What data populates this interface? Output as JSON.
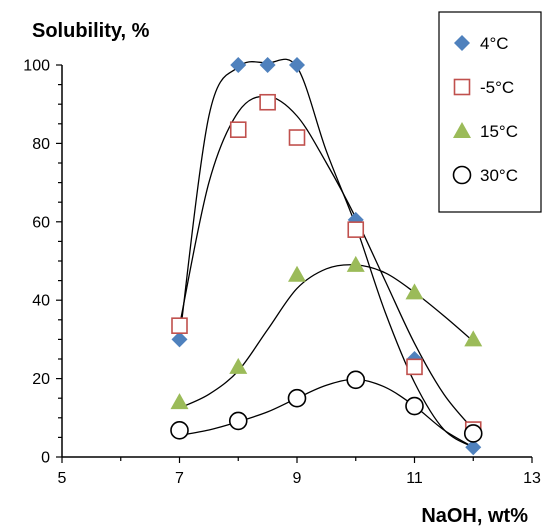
{
  "chart_data": {
    "type": "scatter",
    "title": "",
    "xlabel": "NaOH, wt%",
    "ylabel": "Solubility, %",
    "xlim": [
      5,
      13
    ],
    "ylim": [
      0,
      100
    ],
    "xticks": [
      5,
      7,
      9,
      11,
      13
    ],
    "yticks": [
      0,
      20,
      40,
      60,
      80,
      100
    ],
    "grid": false,
    "legend_position": "top-right",
    "series": [
      {
        "name": "4°C",
        "marker": "diamond",
        "color": "#4f81bd",
        "points": [
          [
            7,
            30
          ],
          [
            8,
            100
          ],
          [
            8.5,
            100
          ],
          [
            9,
            100
          ],
          [
            10,
            60.5
          ],
          [
            11,
            25
          ],
          [
            12,
            2.5
          ]
        ],
        "trend": [
          [
            7,
            30
          ],
          [
            7.5,
            87
          ],
          [
            8,
            99.5
          ],
          [
            8.5,
            100.5
          ],
          [
            9,
            99.5
          ],
          [
            9.5,
            78
          ],
          [
            10,
            59
          ],
          [
            10.5,
            37
          ],
          [
            11,
            19
          ],
          [
            11.5,
            7
          ],
          [
            12,
            2.5
          ]
        ]
      },
      {
        "name": "-5°C",
        "marker": "square-open",
        "color": "#c0504d",
        "points": [
          [
            7,
            33.5
          ],
          [
            8,
            83.5
          ],
          [
            8.5,
            90.5
          ],
          [
            9,
            81.5
          ],
          [
            10,
            58
          ],
          [
            11,
            23
          ],
          [
            12,
            7
          ]
        ],
        "trend": [
          [
            7,
            33.5
          ],
          [
            7.5,
            70
          ],
          [
            8,
            88
          ],
          [
            8.5,
            92
          ],
          [
            9,
            87
          ],
          [
            9.5,
            75
          ],
          [
            10,
            61
          ],
          [
            10.5,
            45
          ],
          [
            11,
            29
          ],
          [
            11.5,
            16
          ],
          [
            12,
            7
          ]
        ]
      },
      {
        "name": "15°C",
        "marker": "triangle",
        "color": "#9bbb59",
        "points": [
          [
            7,
            14
          ],
          [
            8,
            23
          ],
          [
            9,
            46.5
          ],
          [
            10,
            49
          ],
          [
            11,
            42
          ],
          [
            12,
            30
          ]
        ],
        "trend": [
          [
            7,
            12.5
          ],
          [
            7.5,
            16
          ],
          [
            8,
            22
          ],
          [
            8.5,
            32.5
          ],
          [
            9,
            43
          ],
          [
            9.5,
            48
          ],
          [
            10,
            49
          ],
          [
            10.5,
            47
          ],
          [
            11,
            42
          ],
          [
            11.5,
            36
          ],
          [
            12,
            29.5
          ]
        ]
      },
      {
        "name": "30°C",
        "marker": "circle-open",
        "color": "#000000",
        "points": [
          [
            7,
            6.8
          ],
          [
            8,
            9.2
          ],
          [
            9,
            15
          ],
          [
            10,
            19.7
          ],
          [
            11,
            13
          ],
          [
            12,
            6
          ]
        ],
        "trend": [
          [
            7,
            5.5
          ],
          [
            7.5,
            6.9
          ],
          [
            8,
            9
          ],
          [
            8.5,
            11.5
          ],
          [
            9,
            15
          ],
          [
            9.5,
            18.3
          ],
          [
            10,
            19.8
          ],
          [
            10.5,
            17.8
          ],
          [
            11,
            13
          ],
          [
            11.5,
            6.9
          ],
          [
            12,
            2.5
          ]
        ]
      }
    ]
  }
}
